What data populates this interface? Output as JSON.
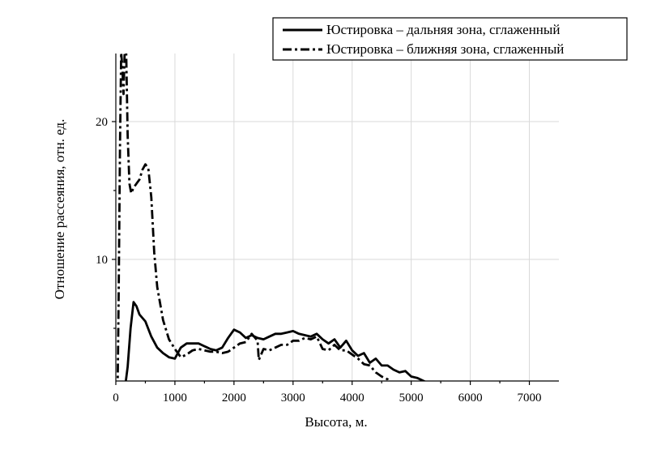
{
  "chart_data": {
    "type": "line",
    "title": "",
    "xlabel": "Высота, м.",
    "ylabel": "Отношение рассеяния, отн. ед.",
    "xlim": [
      0,
      7500
    ],
    "ylim": [
      0.5,
      25
    ],
    "xticks": [
      0,
      1000,
      2000,
      3000,
      4000,
      5000,
      6000,
      7000
    ],
    "yticks": [
      10,
      20
    ],
    "grid": true,
    "legend_position": "top-right",
    "series": [
      {
        "name": "Юстировка – дальняя зона, сглаженный",
        "style": "solid",
        "color": "#000000",
        "x": [
          150,
          200,
          250,
          300,
          350,
          400,
          500,
          600,
          700,
          800,
          900,
          1000,
          1100,
          1200,
          1300,
          1400,
          1500,
          1600,
          1700,
          1800,
          1900,
          2000,
          2100,
          2200,
          2300,
          2400,
          2500,
          2600,
          2700,
          2800,
          2900,
          3000,
          3100,
          3200,
          3300,
          3400,
          3500,
          3600,
          3700,
          3800,
          3900,
          4000,
          4100,
          4200,
          4300,
          4400,
          4500,
          4600,
          4700,
          4800,
          4900,
          5000,
          5100,
          5200,
          5300,
          5400,
          5500,
          5600
        ],
        "y": [
          0.5,
          2.2,
          5.0,
          6.9,
          6.6,
          6.0,
          5.5,
          4.4,
          3.6,
          3.2,
          2.9,
          2.8,
          3.6,
          3.9,
          3.9,
          3.9,
          3.7,
          3.5,
          3.4,
          3.6,
          4.3,
          4.9,
          4.7,
          4.3,
          4.5,
          4.3,
          4.2,
          4.4,
          4.6,
          4.6,
          4.7,
          4.8,
          4.6,
          4.5,
          4.4,
          4.6,
          4.2,
          3.9,
          4.2,
          3.6,
          4.1,
          3.4,
          3.0,
          3.2,
          2.5,
          2.8,
          2.3,
          2.3,
          2.0,
          1.8,
          1.9,
          1.5,
          1.4,
          1.2,
          1.0,
          0.8,
          0.9,
          0.5
        ]
      },
      {
        "name": "Юстировка – ближняя зона, сглаженный",
        "style": "dashdot",
        "color": "#000000",
        "x": [
          30,
          50,
          70,
          90,
          110,
          130,
          150,
          175,
          200,
          230,
          260,
          300,
          350,
          400,
          450,
          500,
          550,
          600,
          650,
          700,
          800,
          900,
          1000,
          1100,
          1200,
          1300,
          1400,
          1500,
          1600,
          1700,
          1800,
          1900,
          2000,
          2100,
          2200,
          2300,
          2400,
          2420,
          2500,
          2600,
          2700,
          2800,
          2900,
          3000,
          3100,
          3200,
          3300,
          3400,
          3500,
          3600,
          3700,
          3800,
          3900,
          4000,
          4100,
          4200,
          4300,
          4400,
          4500,
          4600,
          4700
        ],
        "y": [
          0.5,
          8.0,
          18.0,
          25.0,
          24.0,
          22.0,
          25.0,
          25.0,
          19.0,
          15.5,
          14.8,
          15.2,
          15.5,
          15.8,
          16.5,
          16.9,
          16.6,
          14.5,
          10.5,
          8.0,
          5.6,
          4.2,
          3.5,
          2.9,
          3.1,
          3.4,
          3.5,
          3.4,
          3.3,
          3.3,
          3.2,
          3.3,
          3.6,
          3.9,
          4.0,
          4.6,
          4.1,
          2.7,
          3.5,
          3.4,
          3.6,
          3.8,
          3.8,
          4.1,
          4.1,
          4.3,
          4.2,
          4.4,
          3.5,
          3.4,
          3.8,
          3.4,
          3.4,
          3.1,
          2.8,
          2.4,
          2.3,
          1.8,
          1.5,
          1.3,
          0.6
        ]
      }
    ],
    "extra_marks": [
      {
        "series": "Юстировка – ближняя зона, сглаженный",
        "x": [
          6270,
          6280
        ],
        "y": [
          0.5,
          0.8
        ]
      }
    ]
  }
}
